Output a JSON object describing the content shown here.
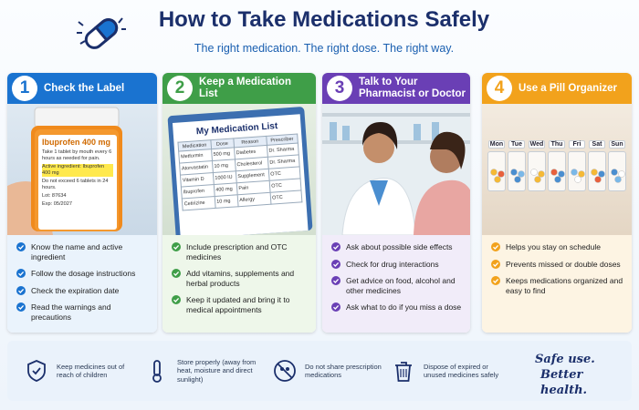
{
  "header": {
    "title": "How to Take Medications Safely",
    "subtitle": "The right medication. The right dose. The right way."
  },
  "steps": [
    {
      "number": "1",
      "title": "Check the Label",
      "color": "#1a73d0",
      "tint": "#eaf3fc",
      "bottle_label": [
        "Ibuprofen 400 mg",
        "Take 1 tablet by mouth every 6 hours as needed for pain.",
        "Active ingredient: Ibuprofen 400 mg",
        "Do not exceed 6 tablets in 24 hours.",
        "Lot: 87634",
        "Exp: 05/2027"
      ],
      "tips": [
        "Know the name and active ingredient",
        "Follow the dosage instructions",
        "Check the expiration date",
        "Read the warnings and precautions"
      ]
    },
    {
      "number": "2",
      "title": "Keep a Medication List",
      "color": "#3f9e48",
      "tint": "#eef7ea",
      "list": {
        "title": "My Medication List",
        "headers": [
          "Medication",
          "Dose",
          "Reason",
          "Prescriber"
        ],
        "rows": [
          [
            "Metformin",
            "500 mg",
            "Diabetes",
            "Dr. Sharma"
          ],
          [
            "Atorvastatin",
            "10 mg",
            "Cholesterol",
            "Dr. Sharma"
          ],
          [
            "Vitamin D",
            "1000 IU",
            "Supplement",
            "OTC"
          ],
          [
            "Ibuprofen",
            "400 mg",
            "Pain",
            "OTC"
          ],
          [
            "Cetirizine",
            "10 mg",
            "Allergy",
            "OTC"
          ]
        ]
      },
      "tips": [
        "Include prescription and OTC medicines",
        "Add vitamins, supplements and herbal products",
        "Keep it updated and bring it to medical appointments"
      ]
    },
    {
      "number": "3",
      "title": "Talk to Your Pharmacist or Doctor",
      "color": "#6a3fb5",
      "tint": "#f1ecf9",
      "tips": [
        "Ask about possible side effects",
        "Check for drug interactions",
        "Get advice on food, alcohol and other medicines",
        "Ask what to do if you miss a dose"
      ]
    },
    {
      "number": "4",
      "title": "Use a Pill Organizer",
      "color": "#f2a21c",
      "tint": "#fdf4e3",
      "days": [
        "Mon",
        "Tue",
        "Wed",
        "Thu",
        "Fri",
        "Sat",
        "Sun"
      ],
      "tips": [
        "Helps you stay on schedule",
        "Prevents missed or double doses",
        "Keeps medications organized and easy to find"
      ]
    }
  ],
  "tips_bar": {
    "items": [
      "Keep medicines out of reach of children",
      "Store properly (away from heat, moisture and direct sunlight)",
      "Do not share prescription medications",
      "Dispose of expired or unused medicines safely"
    ],
    "tagline": [
      "Safe use.",
      "Better health."
    ]
  }
}
